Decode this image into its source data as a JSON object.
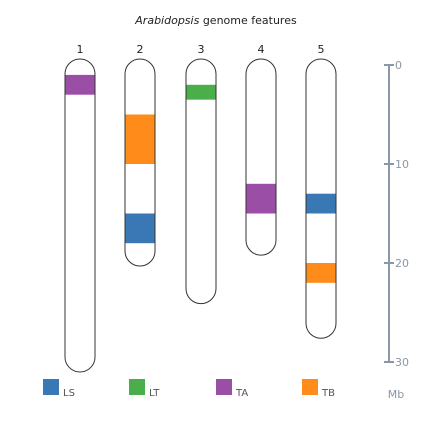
{
  "title": {
    "italic": "Arabidopsis",
    "rest": " genome features"
  },
  "unit": "Mb",
  "scale": {
    "min": 0,
    "max": 30,
    "ticks": [
      0,
      10,
      20,
      30
    ]
  },
  "colors": {
    "LS": "#3a78b5",
    "LT": "#4aae4a",
    "TA": "#9b4ea6",
    "TB": "#ff8c1a",
    "axis": "#8a97a6",
    "outline": "#333333"
  },
  "legend": [
    {
      "key": "LS",
      "label": "LS"
    },
    {
      "key": "LT",
      "label": "LT"
    },
    {
      "key": "TA",
      "label": "TA"
    },
    {
      "key": "TB",
      "label": "TB"
    }
  ],
  "chart_data": {
    "type": "diagram",
    "chromosomes": [
      {
        "label": "1",
        "length": 30.4,
        "features": [
          {
            "type": "TA",
            "start": 1.0,
            "end": 3.0
          }
        ]
      },
      {
        "label": "2",
        "length": 19.7,
        "features": [
          {
            "type": "TB",
            "start": 5.0,
            "end": 10.0
          },
          {
            "type": "LS",
            "start": 15.0,
            "end": 18.0
          }
        ]
      },
      {
        "label": "3",
        "length": 23.5,
        "features": [
          {
            "type": "LT",
            "start": 2.0,
            "end": 3.5
          }
        ]
      },
      {
        "label": "4",
        "length": 18.6,
        "features": [
          {
            "type": "TA",
            "start": 12.0,
            "end": 15.0
          }
        ]
      },
      {
        "label": "5",
        "length": 27.0,
        "features": [
          {
            "type": "LS",
            "start": 13.0,
            "end": 15.0
          },
          {
            "type": "TB",
            "start": 20.0,
            "end": 22.0
          }
        ]
      }
    ]
  }
}
